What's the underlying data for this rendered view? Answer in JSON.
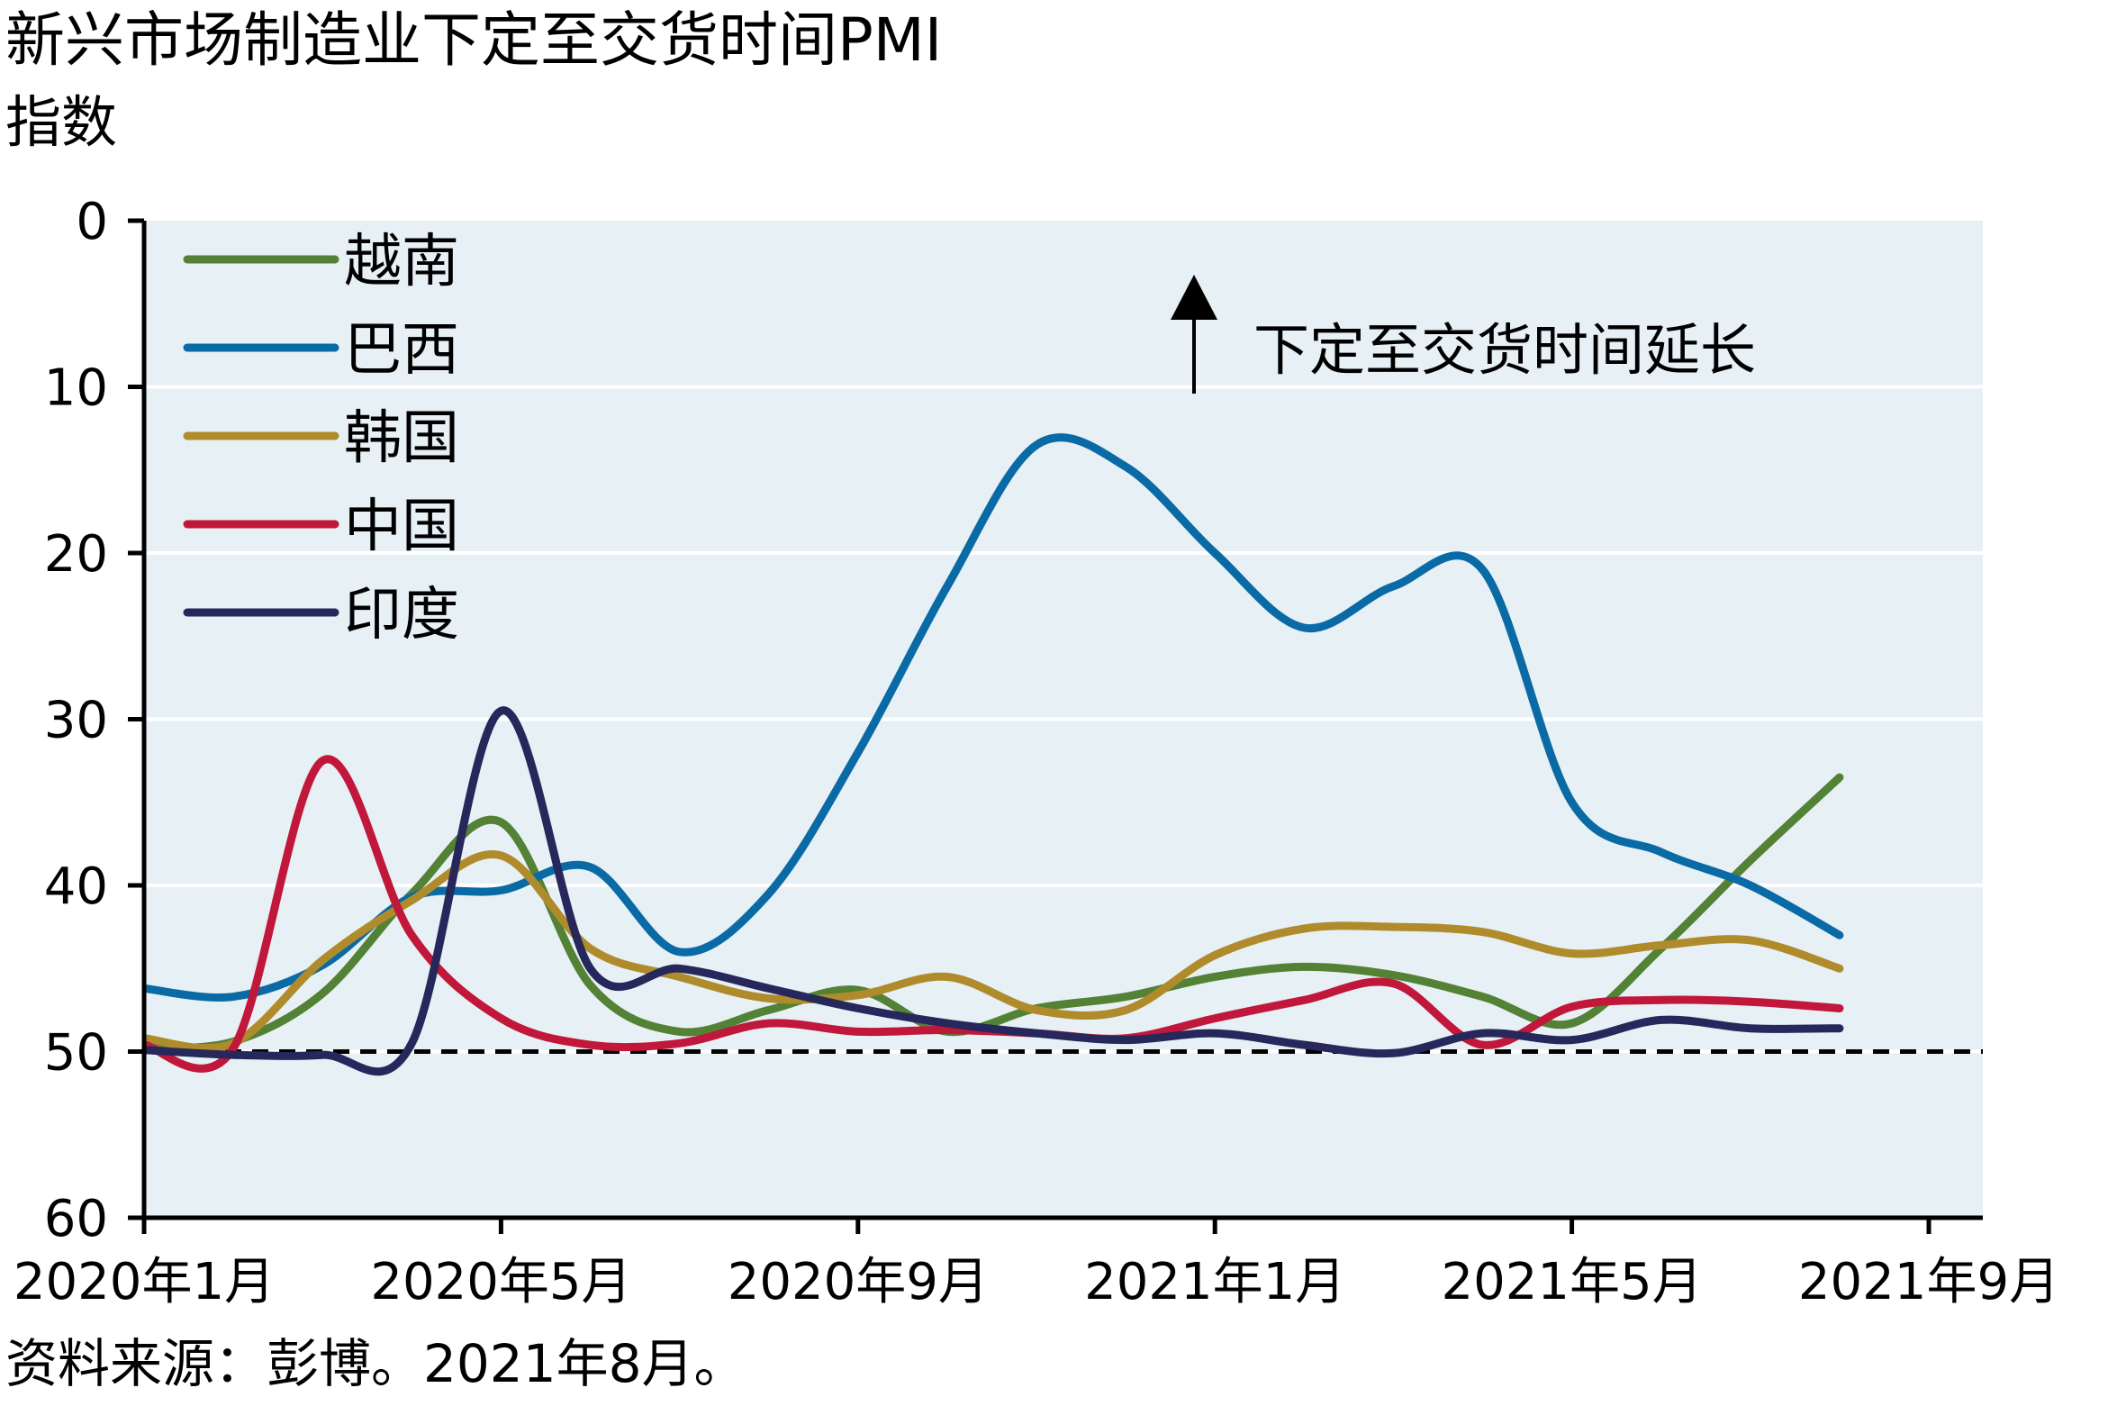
{
  "header": {
    "title": "新兴市场制造业下定至交货时间PMI",
    "subtitle": "指数"
  },
  "footer": {
    "source": "资料来源：彭博。2021年8月。"
  },
  "chart_data": {
    "type": "line",
    "title": "新兴市场制造业下定至交货时间PMI",
    "ylabel": "指数",
    "xlabel": "",
    "y_inverted": true,
    "ylim": [
      0,
      60
    ],
    "y_ticks": [
      "0",
      "10",
      "20",
      "30",
      "40",
      "50",
      "60"
    ],
    "y_tick_values": [
      0,
      10,
      20,
      30,
      40,
      50,
      60
    ],
    "x_tick_labels": [
      "2020年1月",
      "2020年5月",
      "2020年9月",
      "2021年1月",
      "2021年5月",
      "2021年9月"
    ],
    "x_tick_months": [
      0,
      4,
      8,
      12,
      16,
      20
    ],
    "x_months": [
      "2020-01",
      "2020-02",
      "2020-03",
      "2020-04",
      "2020-05",
      "2020-06",
      "2020-07",
      "2020-08",
      "2020-09",
      "2020-10",
      "2020-11",
      "2020-12",
      "2021-01",
      "2021-02",
      "2021-03",
      "2021-04",
      "2021-05",
      "2021-06",
      "2021-07",
      "2021-08"
    ],
    "reference_line": {
      "value": 50,
      "style": "dashed"
    },
    "annotation": {
      "text": "下定至交货时间延长"
    },
    "legend_position": "top-left",
    "grid": "horizontal",
    "colors": {
      "plot_bg": "#e7f0f4",
      "grid": "#ffffff",
      "axis": "#000000"
    },
    "series": [
      {
        "name": "越南",
        "color": "#538135",
        "values": [
          49.8,
          49.4,
          46.5,
          40.5,
          36.2,
          46.0,
          48.8,
          47.5,
          46.3,
          48.8,
          47.4,
          46.7,
          45.5,
          44.9,
          45.4,
          46.7,
          48.3,
          43.8,
          38.5,
          33.5
        ]
      },
      {
        "name": "巴西",
        "color": "#0a6aa5",
        "values": [
          46.2,
          46.7,
          44.8,
          40.7,
          40.3,
          38.9,
          44.0,
          40.5,
          32.0,
          22.0,
          13.5,
          14.8,
          20.0,
          24.5,
          22.0,
          21.0,
          35.0,
          38.0,
          40.0,
          43.0
        ]
      },
      {
        "name": "韩国",
        "color": "#b08b2c",
        "values": [
          49.2,
          49.5,
          44.5,
          40.9,
          38.2,
          43.8,
          45.5,
          46.8,
          46.6,
          45.5,
          47.5,
          47.5,
          44.2,
          42.6,
          42.5,
          42.8,
          44.1,
          43.6,
          43.3,
          45.0
        ]
      },
      {
        "name": "中国",
        "color": "#c0173b",
        "values": [
          49.6,
          49.8,
          32.5,
          43.0,
          48.0,
          49.6,
          49.5,
          48.3,
          48.8,
          48.7,
          48.9,
          49.2,
          48.0,
          46.9,
          45.9,
          49.6,
          47.3,
          46.9,
          47.0,
          47.4
        ]
      },
      {
        "name": "印度",
        "color": "#26275a",
        "values": [
          49.9,
          50.2,
          50.2,
          49.5,
          29.5,
          45.0,
          45.0,
          46.2,
          47.4,
          48.3,
          48.9,
          49.3,
          48.9,
          49.6,
          50.1,
          48.9,
          49.3,
          48.1,
          48.6,
          48.6
        ]
      }
    ]
  }
}
